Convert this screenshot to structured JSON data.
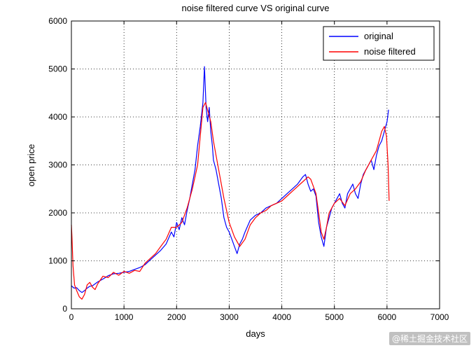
{
  "chart_data": {
    "type": "line",
    "title": "noise filtered curve VS original curve",
    "xlabel": "days",
    "ylabel": "open price",
    "xlim": [
      0,
      7000
    ],
    "ylim": [
      0,
      6000
    ],
    "xticks": [
      0,
      1000,
      2000,
      3000,
      4000,
      5000,
      6000,
      7000
    ],
    "yticks": [
      0,
      1000,
      2000,
      3000,
      4000,
      5000,
      6000
    ],
    "grid": true,
    "legend_position": "top-right",
    "series": [
      {
        "name": "original",
        "color": "#0000ff",
        "x": [
          0,
          20,
          50,
          100,
          150,
          200,
          250,
          300,
          350,
          400,
          500,
          600,
          700,
          800,
          900,
          1000,
          1100,
          1200,
          1300,
          1400,
          1500,
          1600,
          1700,
          1800,
          1900,
          1950,
          2000,
          2050,
          2100,
          2150,
          2200,
          2250,
          2300,
          2350,
          2400,
          2450,
          2500,
          2530,
          2560,
          2590,
          2620,
          2650,
          2680,
          2700,
          2750,
          2800,
          2850,
          2900,
          2950,
          3000,
          3050,
          3100,
          3150,
          3200,
          3250,
          3300,
          3400,
          3500,
          3600,
          3700,
          3800,
          3900,
          4000,
          4100,
          4200,
          4300,
          4400,
          4450,
          4500,
          4550,
          4600,
          4650,
          4700,
          4750,
          4800,
          4850,
          4900,
          4950,
          5000,
          5050,
          5100,
          5150,
          5200,
          5250,
          5300,
          5350,
          5400,
          5450,
          5500,
          5550,
          5600,
          5650,
          5700,
          5750,
          5800,
          5850,
          5900,
          5950,
          6000,
          6030
        ],
        "y": [
          480,
          460,
          430,
          440,
          380,
          340,
          380,
          430,
          470,
          480,
          560,
          620,
          690,
          730,
          740,
          760,
          780,
          820,
          860,
          920,
          1020,
          1120,
          1220,
          1350,
          1600,
          1500,
          1800,
          1650,
          1900,
          1750,
          2050,
          2300,
          2600,
          2900,
          3400,
          3800,
          4300,
          5050,
          4200,
          3900,
          4200,
          3700,
          3400,
          3100,
          2900,
          2600,
          2300,
          1900,
          1700,
          1600,
          1450,
          1300,
          1150,
          1350,
          1450,
          1600,
          1850,
          1950,
          2000,
          2100,
          2150,
          2200,
          2300,
          2400,
          2500,
          2600,
          2750,
          2800,
          2600,
          2450,
          2500,
          2350,
          1800,
          1500,
          1300,
          1700,
          1900,
          2100,
          2200,
          2300,
          2400,
          2200,
          2100,
          2400,
          2500,
          2600,
          2400,
          2300,
          2600,
          2800,
          2900,
          3000,
          3100,
          2900,
          3200,
          3400,
          3500,
          3700,
          3900,
          4150
        ]
      },
      {
        "name": "noise filtered",
        "color": "#ff0000",
        "x": [
          0,
          10,
          30,
          60,
          100,
          150,
          200,
          250,
          300,
          350,
          400,
          450,
          500,
          600,
          700,
          800,
          900,
          1000,
          1100,
          1200,
          1300,
          1400,
          1500,
          1600,
          1700,
          1800,
          1900,
          2000,
          2100,
          2200,
          2300,
          2400,
          2450,
          2500,
          2550,
          2600,
          2650,
          2700,
          2750,
          2800,
          2900,
          3000,
          3100,
          3200,
          3300,
          3400,
          3500,
          3600,
          3700,
          3800,
          3900,
          4000,
          4100,
          4200,
          4300,
          4400,
          4500,
          4550,
          4600,
          4650,
          4700,
          4750,
          4800,
          4850,
          4900,
          5000,
          5100,
          5200,
          5300,
          5400,
          5500,
          5600,
          5700,
          5800,
          5850,
          5900,
          5950,
          5990,
          6020,
          6040
        ],
        "y": [
          1750,
          1500,
          900,
          500,
          380,
          250,
          200,
          300,
          500,
          550,
          450,
          400,
          520,
          680,
          650,
          760,
          700,
          780,
          740,
          800,
          780,
          950,
          1050,
          1150,
          1300,
          1450,
          1700,
          1700,
          1800,
          2100,
          2500,
          3000,
          3600,
          4200,
          4300,
          4100,
          3900,
          3500,
          3200,
          2900,
          2300,
          1800,
          1500,
          1300,
          1450,
          1750,
          1900,
          2000,
          2050,
          2150,
          2200,
          2250,
          2350,
          2450,
          2550,
          2650,
          2750,
          2700,
          2550,
          2400,
          2000,
          1600,
          1450,
          1700,
          2000,
          2200,
          2300,
          2150,
          2400,
          2500,
          2650,
          2900,
          3100,
          3300,
          3500,
          3700,
          3800,
          3600,
          3000,
          2250
        ]
      }
    ]
  },
  "watermark": "@稀土掘金技术社区"
}
